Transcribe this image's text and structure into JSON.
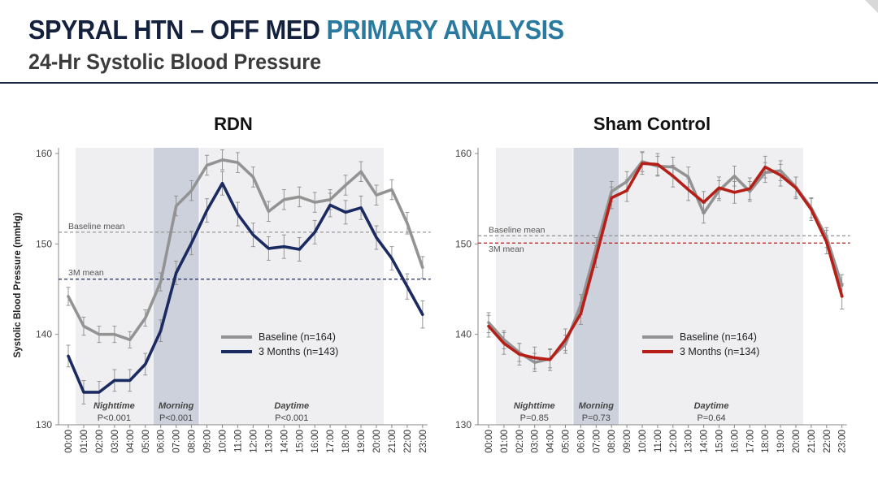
{
  "header": {
    "title_part1": "SPYRAL HTN – OFF MED",
    "title_part2": "PRIMARY ANALYSIS",
    "subtitle": "24-Hr Systolic Blood Pressure"
  },
  "colors": {
    "baseline": "#939393",
    "rdn_3m": "#1b2b62",
    "sham_3m": "#b51f17",
    "shade": "#efeff1",
    "morning": "#cdd1dc"
  },
  "chart_data": [
    {
      "type": "line",
      "title": "RDN",
      "ylabel": "Systolic  Blood Pressure (mmHg)",
      "xlabel": "",
      "ylim": [
        130,
        160
      ],
      "yticks": [
        "130",
        "140",
        "150",
        "160"
      ],
      "categories": [
        "00:00",
        "01:00",
        "02:00",
        "03:00",
        "04:00",
        "05:00",
        "06:00",
        "07:00",
        "08:00",
        "09:00",
        "10:00",
        "11:00",
        "12:00",
        "13:00",
        "14:00",
        "15:00",
        "16:00",
        "17:00",
        "18:00",
        "19:00",
        "20:00",
        "21:00",
        "22:00",
        "23:00"
      ],
      "series": [
        {
          "name": "Baseline (n=164)",
          "color": "#939393",
          "values": [
            144.2,
            140.9,
            140.0,
            140.0,
            139.4,
            141.8,
            145.8,
            154.2,
            155.9,
            158.7,
            159.3,
            159.0,
            157.4,
            153.6,
            154.9,
            155.2,
            154.6,
            154.9,
            156.5,
            158.0,
            155.4,
            156.0,
            152.3,
            147.4
          ],
          "errors": [
            1.0,
            1.0,
            0.9,
            0.9,
            0.9,
            0.9,
            1.0,
            1.1,
            1.1,
            1.1,
            1.1,
            1.1,
            1.1,
            1.1,
            1.1,
            1.1,
            1.1,
            1.1,
            1.1,
            1.1,
            1.1,
            1.1,
            1.2,
            1.2
          ]
        },
        {
          "name": "3 Months (n=143)",
          "color": "#1b2b62",
          "values": [
            137.6,
            133.6,
            133.6,
            134.9,
            134.9,
            136.7,
            140.4,
            146.8,
            150.1,
            153.7,
            156.7,
            153.3,
            151.0,
            149.5,
            149.7,
            149.4,
            151.3,
            154.3,
            153.5,
            154.0,
            150.7,
            148.4,
            145.3,
            142.2
          ],
          "errors": [
            1.2,
            1.3,
            1.2,
            1.2,
            1.2,
            1.2,
            1.2,
            1.3,
            1.3,
            1.3,
            1.3,
            1.3,
            1.3,
            1.3,
            1.3,
            1.3,
            1.3,
            1.3,
            1.3,
            1.3,
            1.3,
            1.3,
            1.4,
            1.5
          ]
        }
      ],
      "reference_lines": [
        {
          "label": "Baseline mean",
          "value": 151.3,
          "color": "#9a9a9a"
        },
        {
          "label": "3M mean",
          "value": 146.1,
          "color": "#1b2b62"
        }
      ],
      "periods": [
        {
          "label": "Nighttime",
          "p": "P<0.001",
          "start": "00:00",
          "end": "05:00"
        },
        {
          "label": "Morning",
          "p": "P<0.001",
          "start": "06:00",
          "end": "08:00"
        },
        {
          "label": "Daytime",
          "p": "P<0.001",
          "start": "09:00",
          "end": "20:00"
        }
      ],
      "legend_position": "lower-right"
    },
    {
      "type": "line",
      "title": "Sham Control",
      "ylabel": "",
      "xlabel": "",
      "ylim": [
        130,
        160
      ],
      "yticks": [
        "130",
        "140",
        "150",
        "160"
      ],
      "categories": [
        "00:00",
        "01:00",
        "02:00",
        "03:00",
        "04:00",
        "05:00",
        "06:00",
        "07:00",
        "08:00",
        "09:00",
        "10:00",
        "11:00",
        "12:00",
        "13:00",
        "14:00",
        "15:00",
        "16:00",
        "17:00",
        "18:00",
        "19:00",
        "20:00",
        "21:00",
        "22:00",
        "23:00"
      ],
      "series": [
        {
          "name": "Baseline (n=164)",
          "color": "#939393",
          "values": [
            141.3,
            139.4,
            138.0,
            136.9,
            137.3,
            138.9,
            143.3,
            149.6,
            155.8,
            156.9,
            159.1,
            158.6,
            158.5,
            157.4,
            153.4,
            155.9,
            157.5,
            155.8,
            157.9,
            158.1,
            156.3,
            154.0,
            150.7,
            145.4
          ],
          "errors": [
            1.1,
            1.0,
            1.0,
            1.0,
            1.0,
            1.0,
            1.1,
            1.1,
            1.1,
            1.1,
            1.1,
            1.1,
            1.1,
            1.1,
            1.1,
            1.1,
            1.1,
            1.1,
            1.1,
            1.1,
            1.1,
            1.1,
            1.1,
            1.2
          ]
        },
        {
          "name": "3 Months (n=134)",
          "color": "#b51f17",
          "values": [
            140.9,
            139.0,
            137.8,
            137.4,
            137.2,
            139.4,
            142.3,
            148.6,
            155.1,
            155.9,
            158.9,
            158.8,
            157.5,
            156.0,
            154.6,
            156.2,
            155.7,
            156.1,
            158.5,
            157.6,
            156.2,
            153.8,
            150.2,
            144.2
          ],
          "errors": [
            1.2,
            1.2,
            1.2,
            1.2,
            1.2,
            1.2,
            1.2,
            1.2,
            1.2,
            1.2,
            1.2,
            1.2,
            1.2,
            1.2,
            1.2,
            1.2,
            1.2,
            1.2,
            1.2,
            1.2,
            1.2,
            1.2,
            1.3,
            1.4
          ]
        }
      ],
      "reference_lines": [
        {
          "label": "Baseline mean",
          "value": 150.9,
          "color": "#9a9a9a"
        },
        {
          "label": "3M mean",
          "value": 150.1,
          "color": "#b51f17"
        }
      ],
      "periods": [
        {
          "label": "Nighttime",
          "p": "P=0.85",
          "start": "00:00",
          "end": "05:00"
        },
        {
          "label": "Morning",
          "p": "P=0.73",
          "start": "06:00",
          "end": "08:00"
        },
        {
          "label": "Daytime",
          "p": "P=0.64",
          "start": "09:00",
          "end": "20:00"
        }
      ],
      "legend_position": "lower-right"
    }
  ]
}
